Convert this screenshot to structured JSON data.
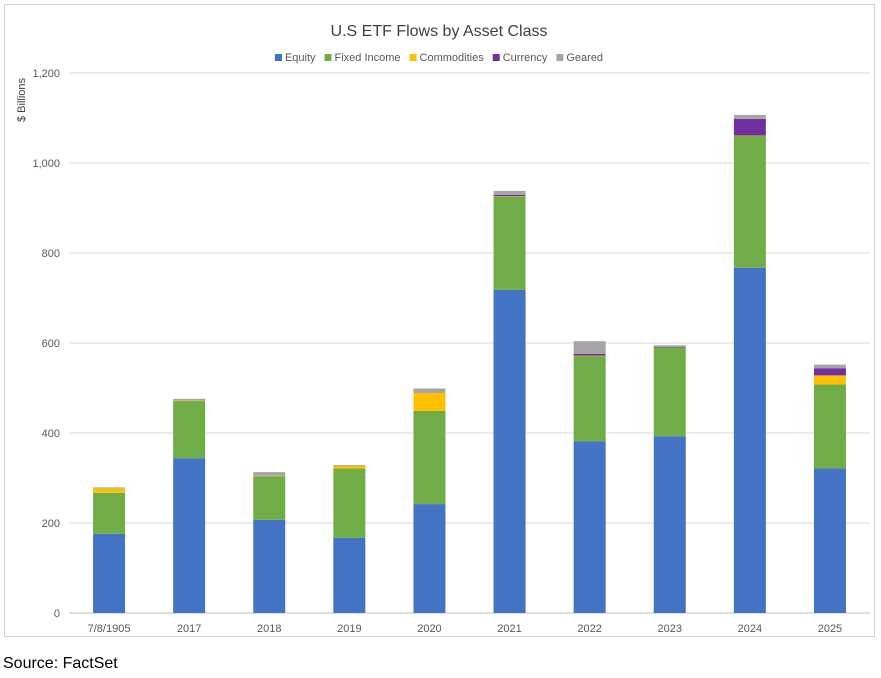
{
  "chart_data": {
    "type": "bar",
    "stacked": true,
    "title": "U.S ETF Flows by Asset Class",
    "xlabel": "",
    "ylabel": "$ Billions",
    "ylim": [
      0,
      1200
    ],
    "yticks": [
      0,
      200,
      400,
      600,
      800,
      1000,
      1200
    ],
    "ytick_labels": [
      "0",
      "200",
      "400",
      "600",
      "800",
      "1,000",
      "1,200"
    ],
    "grid": true,
    "legend_position": "top",
    "categories": [
      "7/8/1905",
      "2017",
      "2018",
      "2019",
      "2020",
      "2021",
      "2022",
      "2023",
      "2024",
      "2025"
    ],
    "series": [
      {
        "name": "Equity",
        "color": "#4472C4",
        "values": [
          176,
          344,
          207,
          167,
          242,
          718,
          381,
          393,
          767,
          321
        ]
      },
      {
        "name": "Fixed Income",
        "color": "#70AD47",
        "values": [
          91,
          127,
          97,
          154,
          207,
          207,
          190,
          197,
          293,
          187
        ]
      },
      {
        "name": "Commodities",
        "color": "#FFC000",
        "values": [
          10,
          1,
          1,
          6,
          40,
          1,
          1,
          0,
          1,
          20
        ]
      },
      {
        "name": "Currency",
        "color": "#7030A0",
        "values": [
          0,
          0,
          0,
          0,
          0,
          3,
          4,
          1,
          37,
          16
        ]
      },
      {
        "name": "Geared",
        "color": "#A5A5A5",
        "values": [
          2,
          4,
          8,
          2,
          10,
          9,
          28,
          4,
          9,
          8
        ]
      }
    ]
  },
  "source": "Source: FactSet"
}
